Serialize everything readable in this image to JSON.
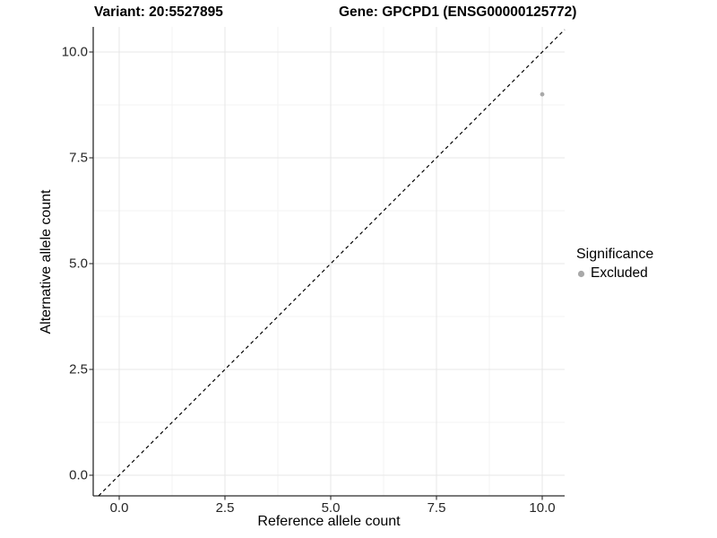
{
  "titles": {
    "variant": "Variant: 20:5527895",
    "gene": "Gene: GPCPD1 (ENSG00000125772)"
  },
  "axes": {
    "x_label": "Reference allele count",
    "y_label": "Alternative allele count"
  },
  "legend": {
    "title": "Significance",
    "items": [
      {
        "label": "Excluded",
        "color": "#a9a9a9"
      }
    ]
  },
  "chart_data": {
    "type": "scatter",
    "title": "Variant: 20:5527895   Gene: GPCPD1 (ENSG00000125772)",
    "xlabel": "Reference allele count",
    "ylabel": "Alternative allele count",
    "x_ticks": [
      0.0,
      2.5,
      5.0,
      7.5,
      10.0
    ],
    "y_ticks": [
      0.0,
      2.5,
      5.0,
      7.5,
      10.0
    ],
    "x_tick_labels": [
      "0.0",
      "2.5",
      "5.0",
      "7.5",
      "10.0"
    ],
    "y_tick_labels": [
      "0.0",
      "2.5",
      "5.0",
      "7.5",
      "10.0"
    ],
    "xlim": [
      -0.61,
      10.53
    ],
    "ylim": [
      -0.49,
      10.59
    ],
    "grid": true,
    "minor_grid": true,
    "legend_position": "right",
    "series": [
      {
        "name": "Excluded",
        "color": "#a9a9a9",
        "points": [
          {
            "x": 10,
            "y": 9
          }
        ]
      }
    ],
    "reference_line": {
      "type": "identity",
      "slope": 1,
      "intercept": 0,
      "style": "dashed",
      "color": "#000000"
    }
  },
  "style_colors": {
    "grid_major": "#e7e7e7",
    "grid_minor": "#f3f3f3",
    "axis_line": "#2b2b2b",
    "tick_mark": "#2b2b2b"
  }
}
